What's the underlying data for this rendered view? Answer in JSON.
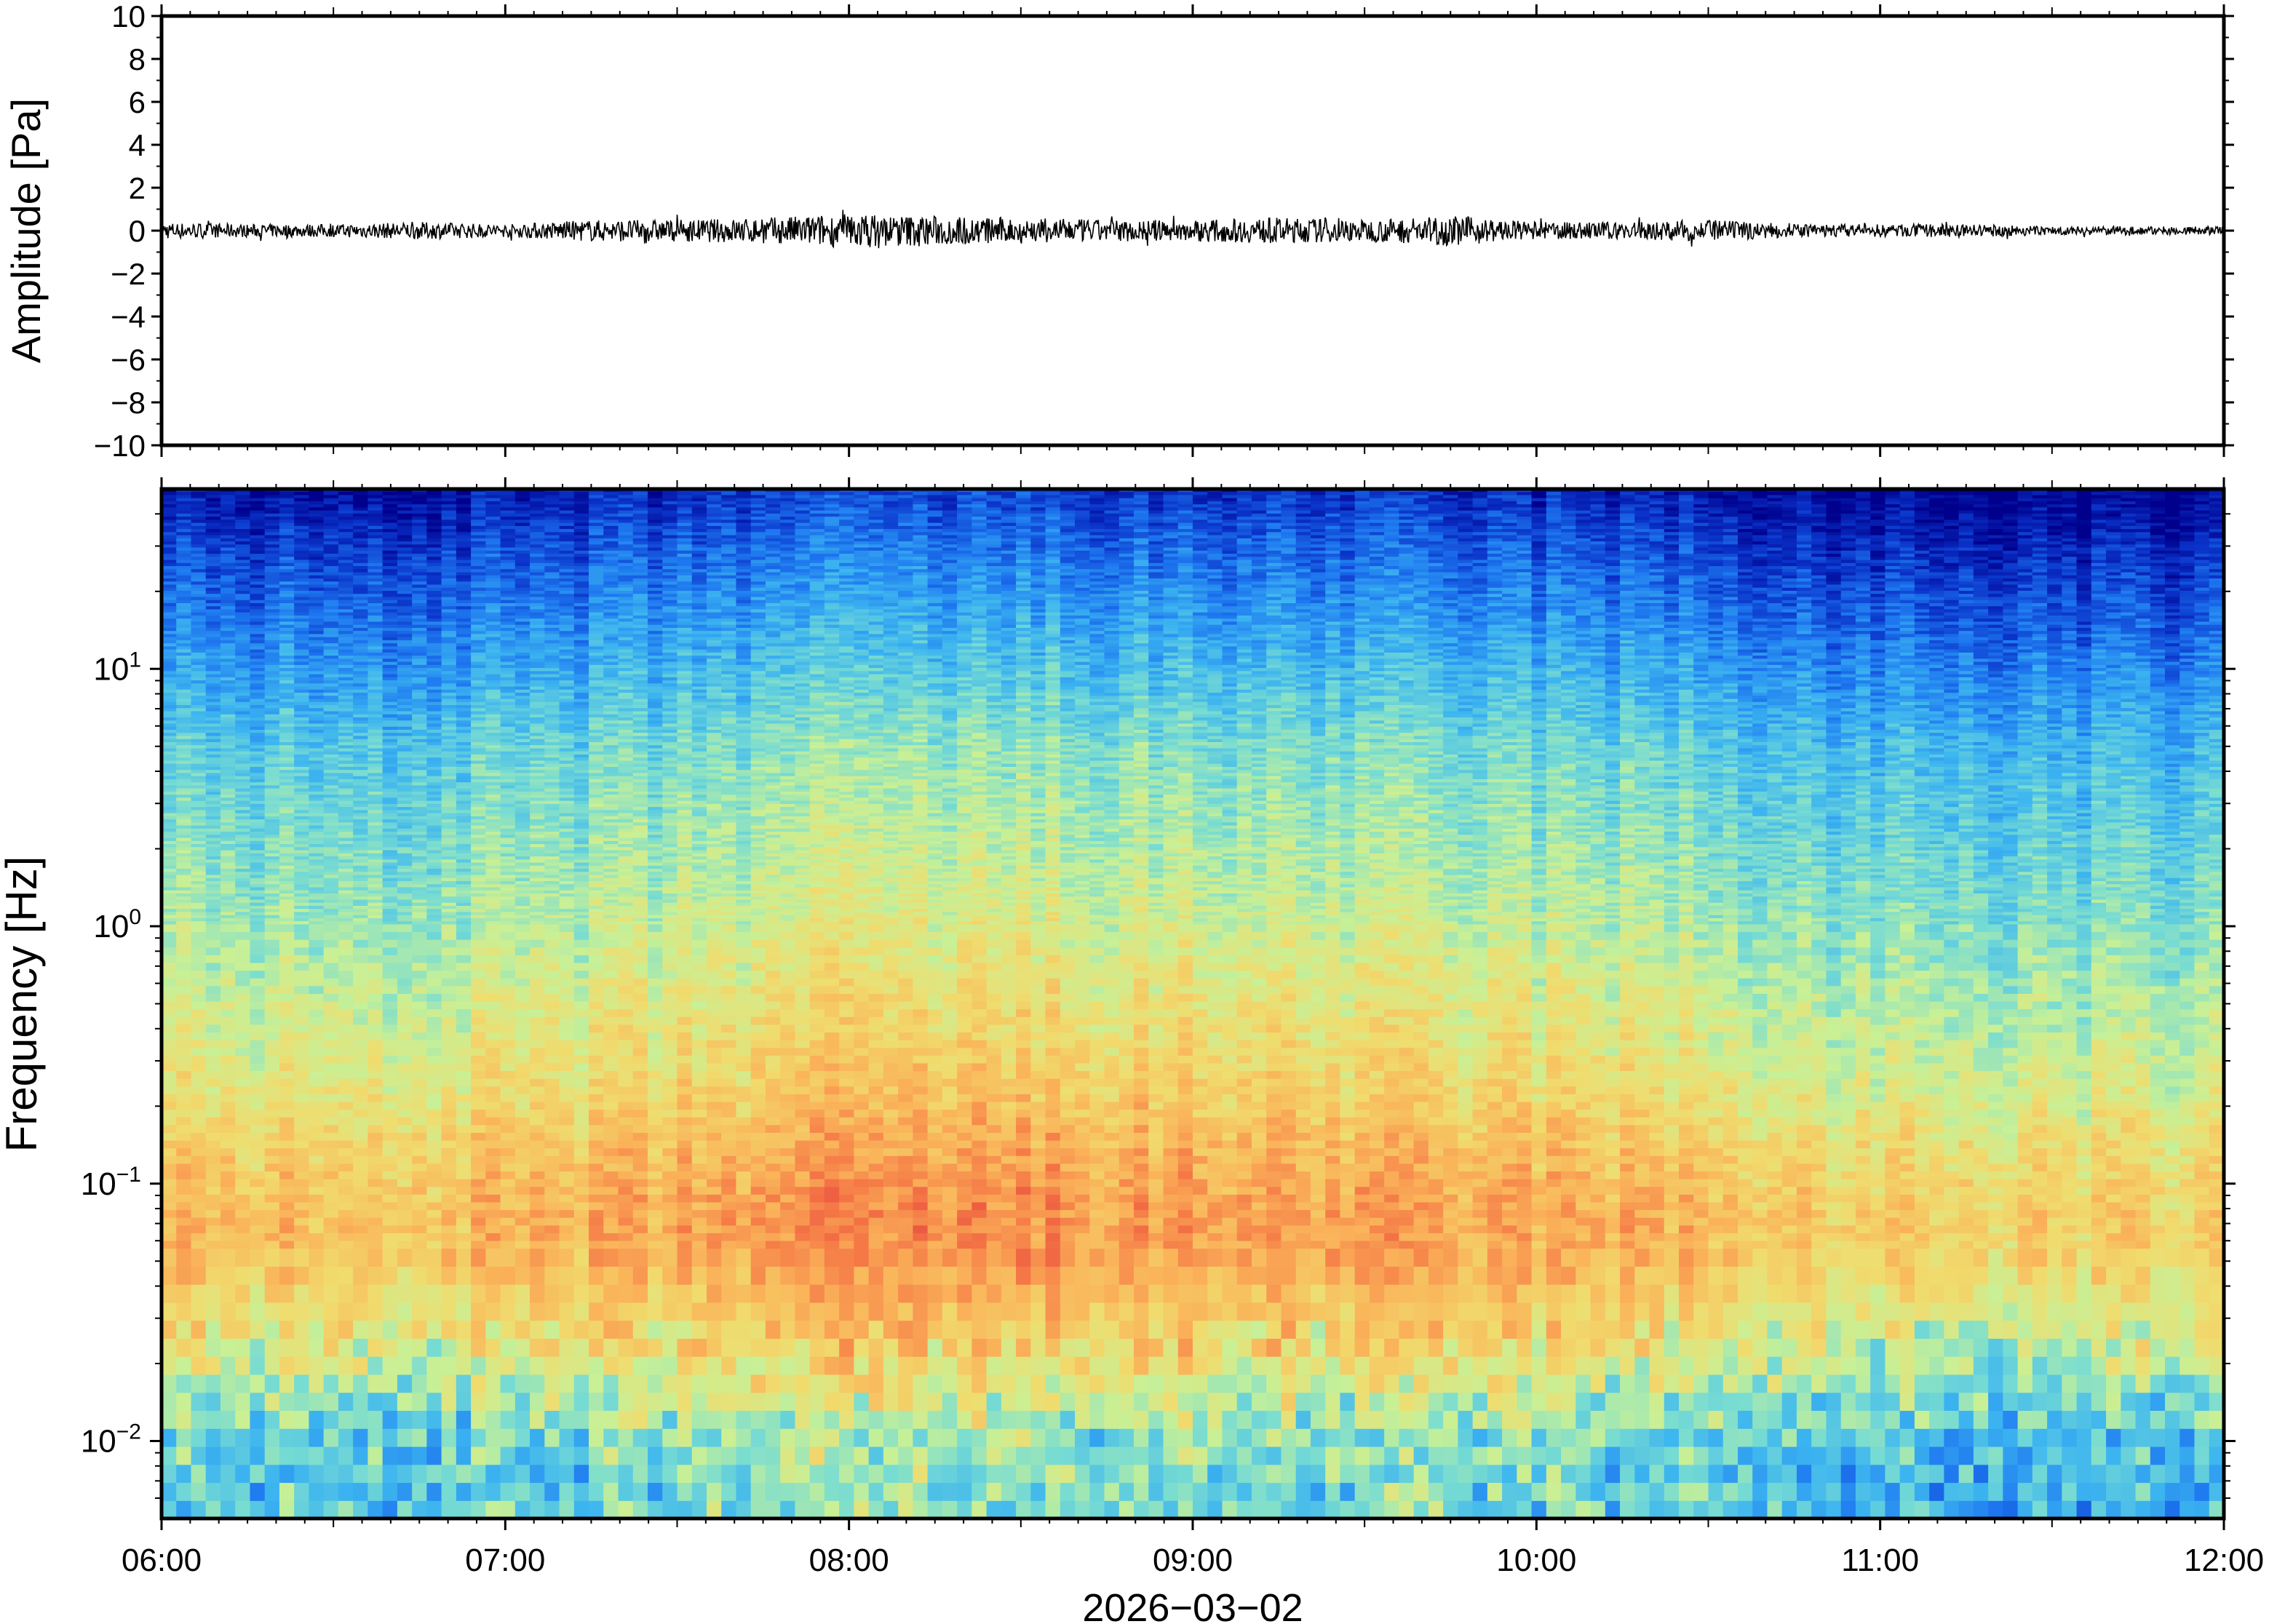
{
  "chart_data": [
    {
      "type": "line",
      "title": "",
      "xlabel": "",
      "ylabel": "Amplitude [Pa]",
      "ylim": [
        -10,
        10
      ],
      "y_ticks": [
        10,
        8,
        6,
        4,
        2,
        0,
        -2,
        -4,
        -6,
        -8,
        -10
      ],
      "y_tick_labels": [
        "10",
        "8",
        "6",
        "4",
        "2",
        "0",
        "−2",
        "−4",
        "−6",
        "−8",
        "−10"
      ],
      "xlim": [
        "06:00",
        "12:00"
      ],
      "series": [
        {
          "description": "pressure waveform, peak envelope in Pa every 15 min",
          "x": [
            "06:00",
            "06:15",
            "06:30",
            "06:45",
            "07:00",
            "07:15",
            "07:30",
            "07:45",
            "08:00",
            "08:15",
            "08:30",
            "08:45",
            "09:00",
            "09:15",
            "09:30",
            "09:45",
            "10:00",
            "10:15",
            "10:30",
            "10:45",
            "11:00",
            "11:15",
            "11:30",
            "11:45",
            "12:00"
          ],
          "values": [
            0.4,
            0.3,
            0.3,
            0.4,
            0.3,
            0.5,
            0.5,
            0.6,
            0.8,
            0.7,
            0.6,
            0.5,
            0.5,
            0.6,
            0.5,
            0.7,
            0.4,
            0.4,
            0.5,
            0.3,
            0.3,
            0.3,
            0.2,
            0.2,
            0.2
          ]
        }
      ],
      "grid": false,
      "line_color": "#000000"
    },
    {
      "type": "heatmap",
      "title": "",
      "xlabel": "2026−03−02",
      "ylabel": "Frequency [Hz]",
      "y_scale": "log",
      "ylim": [
        0.005,
        50
      ],
      "y_ticks": [
        0.01,
        0.1,
        1,
        10
      ],
      "y_tick_labels": [
        {
          "base": "10",
          "exp": "−2"
        },
        {
          "base": "10",
          "exp": "−1"
        },
        {
          "base": "10",
          "exp": "0"
        },
        {
          "base": "10",
          "exp": "1"
        }
      ],
      "x_ticks": [
        "06:00",
        "07:00",
        "08:00",
        "09:00",
        "10:00",
        "11:00",
        "12:00"
      ],
      "colormap": [
        "#00008c",
        "#0a32c8",
        "#1e78f0",
        "#3cb4f0",
        "#78dcd2",
        "#c8f096",
        "#f0dc6e",
        "#fab45a",
        "#f57846",
        "#dc283c"
      ],
      "description": "spectral power level (0 = low/blue, 1 = high/red); rows are frequency (Hz), columns are time",
      "freq_profile": {
        "f": [
          0.005,
          0.007,
          0.01,
          0.014,
          0.02,
          0.03,
          0.05,
          0.07,
          0.1,
          0.15,
          0.2,
          0.3,
          0.5,
          0.7,
          1,
          2,
          3,
          5,
          10,
          20,
          30,
          50
        ],
        "level": [
          0.4,
          0.4,
          0.42,
          0.5,
          0.58,
          0.66,
          0.74,
          0.76,
          0.74,
          0.7,
          0.66,
          0.62,
          0.58,
          0.55,
          0.52,
          0.47,
          0.44,
          0.4,
          0.3,
          0.2,
          0.14,
          0.05
        ]
      },
      "time_activity": {
        "t": [
          "06:00",
          "06:30",
          "07:00",
          "07:30",
          "07:45",
          "08:00",
          "08:30",
          "09:00",
          "09:15",
          "09:30",
          "10:00",
          "10:30",
          "10:45",
          "11:00",
          "11:30",
          "12:00"
        ],
        "offset": [
          0.0,
          -0.02,
          0.0,
          0.03,
          0.07,
          0.08,
          0.08,
          0.05,
          0.06,
          0.04,
          0.03,
          0.0,
          -0.04,
          -0.06,
          -0.06,
          -0.07
        ]
      },
      "grid": false
    }
  ]
}
